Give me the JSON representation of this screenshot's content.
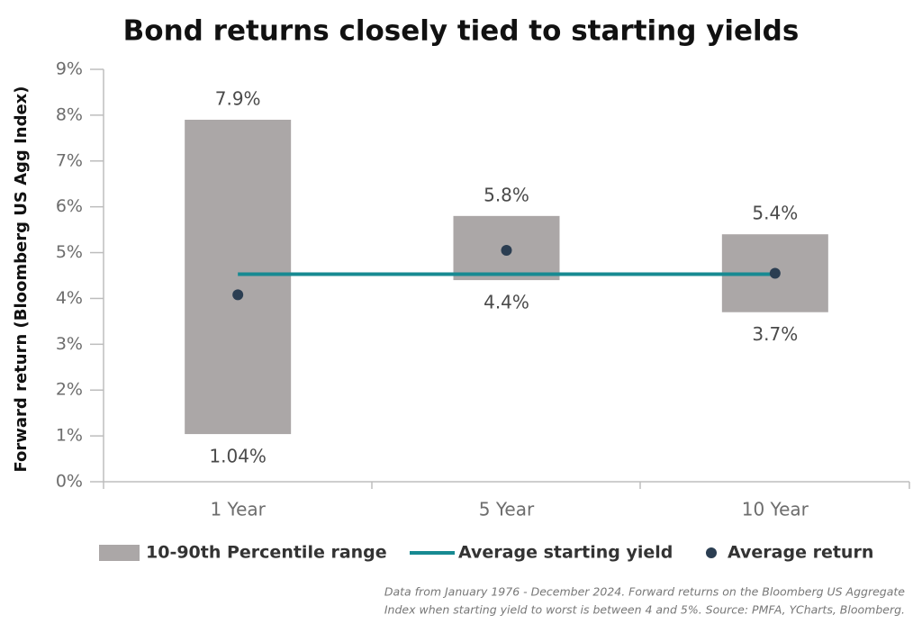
{
  "chart_data": {
    "type": "range",
    "title": "Bond returns closely tied to starting yields",
    "y_label": "Forward return (Bloomberg US Agg Index)",
    "categories": [
      "1 Year",
      "5 Year",
      "10 Year"
    ],
    "ylim": [
      0,
      9
    ],
    "yticks": [
      {
        "value": 0,
        "label": "0%"
      },
      {
        "value": 1,
        "label": "1%"
      },
      {
        "value": 2,
        "label": "2%"
      },
      {
        "value": 3,
        "label": "3%"
      },
      {
        "value": 4,
        "label": "4%"
      },
      {
        "value": 5,
        "label": "5%"
      },
      {
        "value": 6,
        "label": "6%"
      },
      {
        "value": 7,
        "label": "7%"
      },
      {
        "value": 8,
        "label": "8%"
      },
      {
        "value": 9,
        "label": "9%"
      }
    ],
    "range": {
      "name": "10-90th Percentile range",
      "color": "#aba7a7",
      "low": [
        1.04,
        4.4,
        3.7
      ],
      "high": [
        7.9,
        5.8,
        5.4
      ],
      "low_labels": [
        "1.04%",
        "4.4%",
        "3.7%"
      ],
      "high_labels": [
        "7.9%",
        "5.8%",
        "5.4%"
      ]
    },
    "line": {
      "name": "Average starting yield",
      "color": "#178a92",
      "values": [
        4.53,
        4.53,
        4.53
      ]
    },
    "points": {
      "name": "Average return",
      "color": "#2b3e52",
      "values": [
        4.08,
        5.05,
        4.55
      ]
    },
    "note_lines": [
      "Data from January 1976 - December 2024. Forward returns on the Bloomberg US Aggregate",
      "Index when starting yield to worst is between 4 and 5%. Source: PMFA, YCharts, Bloomberg."
    ]
  }
}
